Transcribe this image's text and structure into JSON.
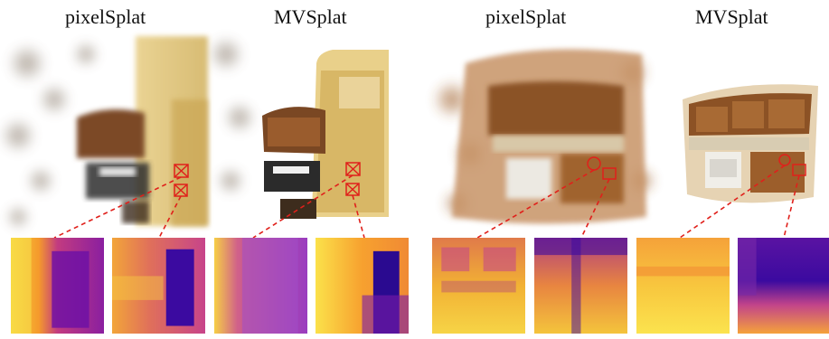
{
  "labels": {
    "left_method_a": "pixelSplat",
    "left_method_b": "MVSplat",
    "right_method_a": "pixelSplat",
    "right_method_b": "MVSplat"
  },
  "colors": {
    "connector": "#e0201b",
    "background": "#ffffff"
  },
  "depth_colormap": "plasma",
  "icons": [
    "zoom-box-icon"
  ]
}
